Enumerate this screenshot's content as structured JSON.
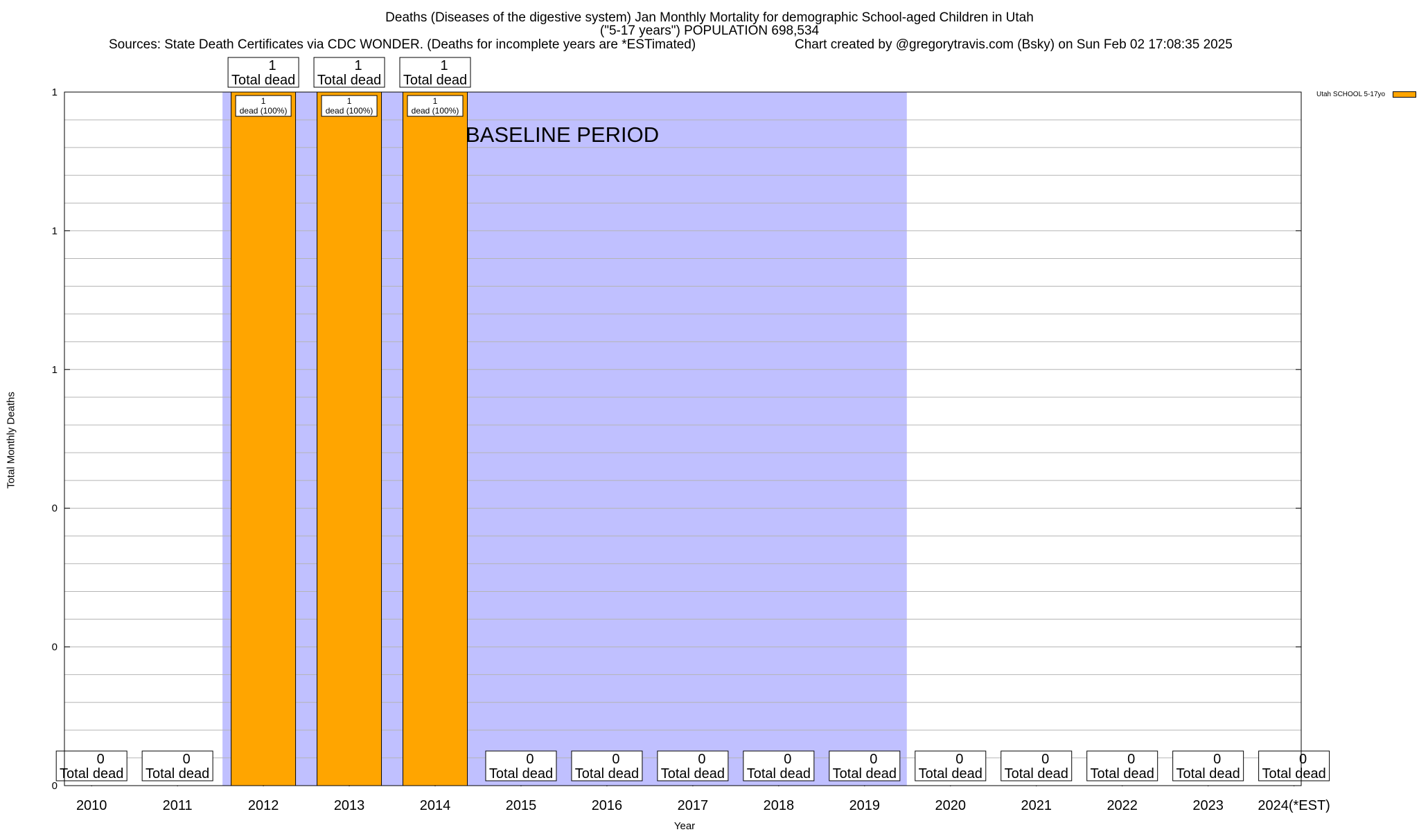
{
  "title": {
    "line1": "Deaths (Diseases of the digestive system) Jan Monthly Mortality for demographic School-aged Children in Utah",
    "line2": "(\"5-17 years\") POPULATION 698,534",
    "sources": "Sources: State Death Certificates via CDC WONDER. (Deaths for incomplete years are *ESTimated)",
    "credit": "Chart created by @gregorytravis.com (Bsky) on Sun Feb 02 17:08:35 2025"
  },
  "chart_data": {
    "type": "bar",
    "categories": [
      "2010",
      "2011",
      "2012",
      "2013",
      "2014",
      "2015",
      "2016",
      "2017",
      "2018",
      "2019",
      "2020",
      "2021",
      "2022",
      "2023",
      "2024(*EST)"
    ],
    "series": [
      {
        "name": "Utah SCHOOL 5-17yo",
        "color": "#ffa500",
        "values": [
          0,
          0,
          1,
          1,
          1,
          0,
          0,
          0,
          0,
          0,
          0,
          0,
          0,
          0,
          0
        ]
      }
    ],
    "total_labels": [
      "0",
      "0",
      "1",
      "1",
      "1",
      "0",
      "0",
      "0",
      "0",
      "0",
      "0",
      "0",
      "0",
      "0",
      "0"
    ],
    "total_caption": "Total dead",
    "bar_labels": [
      {
        "index": 2,
        "count": "1",
        "text": "dead (100%)"
      },
      {
        "index": 3,
        "count": "1",
        "text": "dead (100%)"
      },
      {
        "index": 4,
        "count": "1",
        "text": "dead (100%)"
      }
    ],
    "xlabel": "Year",
    "ylabel": "Total Monthly Deaths",
    "ylim": [
      0,
      1
    ],
    "ytick_values": [
      0,
      0.2,
      0.4,
      0.6,
      0.8,
      1
    ],
    "ytick_labels": [
      "0",
      "0",
      "0",
      "1",
      "1",
      "1"
    ],
    "minor_grid_step": 0.04,
    "grid": true,
    "baseline": {
      "label": "BASELINE PERIOD",
      "from_index": 2,
      "to_index": 9,
      "color": "#c0c0ff"
    },
    "legend_position": "top-right"
  }
}
